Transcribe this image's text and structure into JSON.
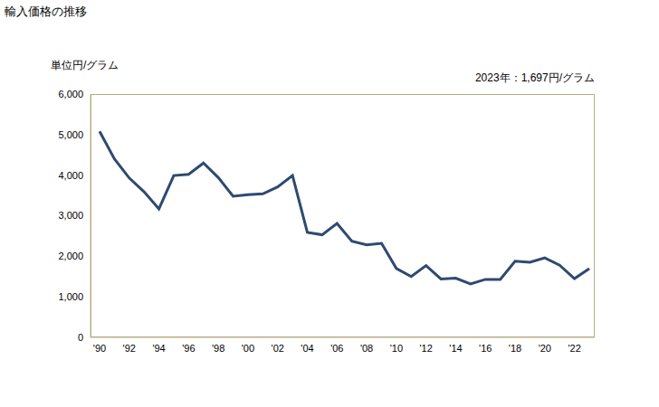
{
  "chart_data": {
    "type": "line",
    "title": "輸入価格の推移",
    "y_label": "単位円/グラム",
    "annotation": "2023年：1,697円/グラム",
    "categories": [
      "'90",
      null,
      "'92",
      null,
      "'94",
      null,
      "'96",
      null,
      "'98",
      null,
      "'00",
      null,
      "'02",
      null,
      "'04",
      null,
      "'06",
      null,
      "'08",
      null,
      "'10",
      null,
      "'12",
      null,
      "'14",
      null,
      "'16",
      null,
      "'18",
      null,
      "'20",
      null,
      "'22",
      null
    ],
    "values": [
      5080,
      4400,
      3930,
      3590,
      3170,
      3990,
      4020,
      4300,
      3940,
      3480,
      3520,
      3540,
      3710,
      3990,
      2590,
      2530,
      2810,
      2370,
      2280,
      2320,
      1700,
      1500,
      1770,
      1440,
      1460,
      1320,
      1430,
      1430,
      1880,
      1850,
      1960,
      1780,
      1450,
      1697
    ],
    "color": "#2e4a70",
    "ylim": [
      0,
      6000
    ],
    "yticks": [
      0,
      {
        "value": 1000,
        "label": "1,000"
      },
      {
        "value": 2000,
        "label": "2,000"
      },
      {
        "value": 3000,
        "label": "3,000"
      },
      {
        "value": 4000,
        "label": "4,000"
      },
      {
        "value": 5000,
        "label": "5,000"
      },
      {
        "value": 6000,
        "label": "6,000"
      }
    ],
    "grid": false
  }
}
